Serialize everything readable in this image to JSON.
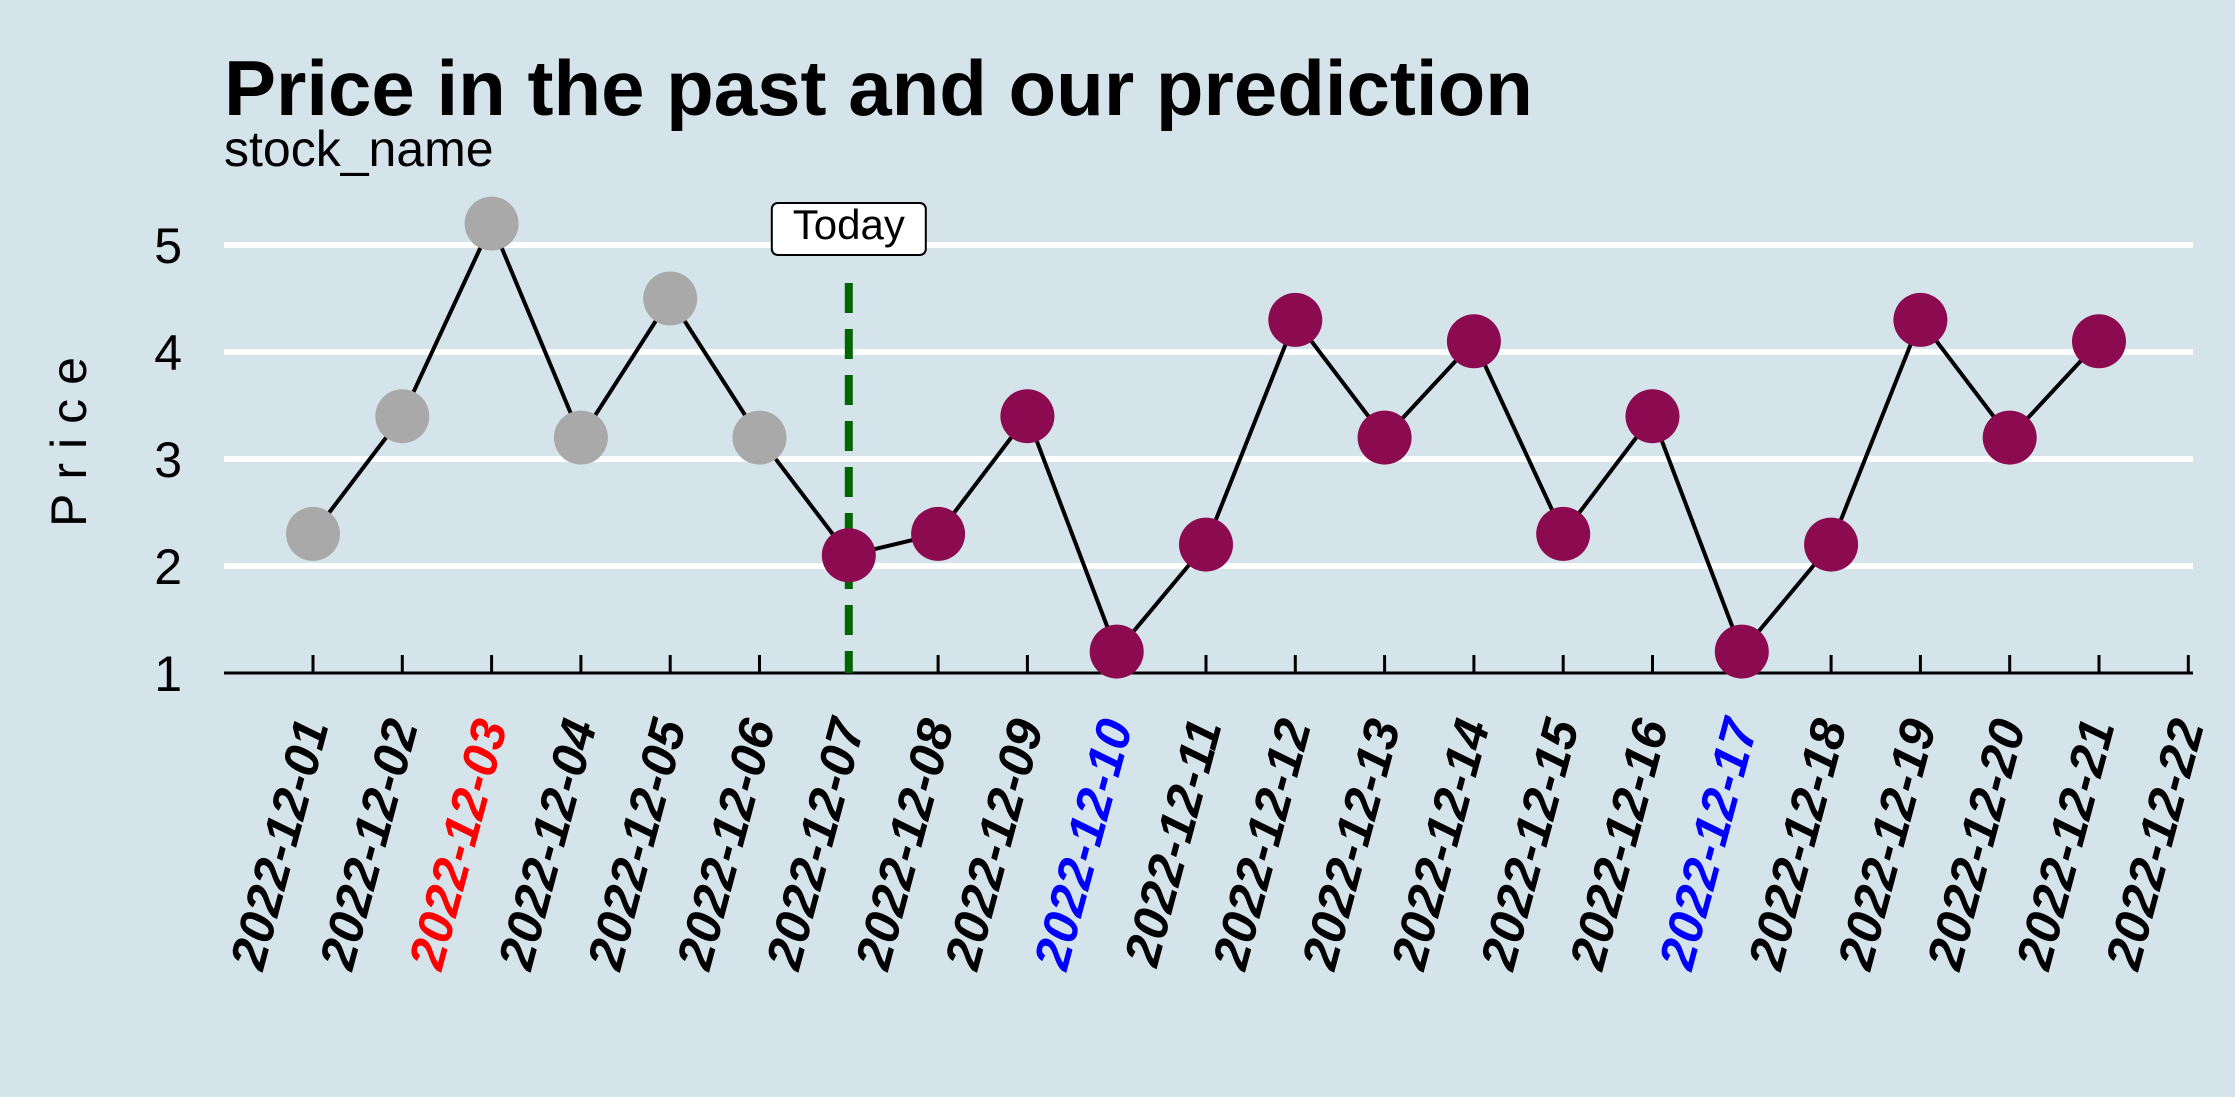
{
  "chart_data": {
    "type": "line",
    "title": "Price in the past and our prediction",
    "subtitle": "stock_name",
    "xlabel": "",
    "ylabel": "Price",
    "yticks": [
      1,
      2,
      3,
      4,
      5
    ],
    "ylim": [
      1,
      5.45
    ],
    "grid": "horizontal",
    "x": [
      "2022-12-01",
      "2022-12-02",
      "2022-12-03",
      "2022-12-04",
      "2022-12-05",
      "2022-12-06",
      "2022-12-07",
      "2022-12-08",
      "2022-12-09",
      "2022-12-10",
      "2022-12-11",
      "2022-12-12",
      "2022-12-13",
      "2022-12-14",
      "2022-12-15",
      "2022-12-16",
      "2022-12-17",
      "2022-12-18",
      "2022-12-19",
      "2022-12-20",
      "2022-12-21",
      "2022-12-22"
    ],
    "tick_colors": {
      "2022-12-03": "#ff0000",
      "2022-12-10": "#0000ff",
      "2022-12-17": "#0000ff"
    },
    "default_tick_color": "#000000",
    "series": [
      {
        "role": "past",
        "color": "#a9a9a9",
        "x": [
          "2022-12-01",
          "2022-12-02",
          "2022-12-03",
          "2022-12-04",
          "2022-12-05",
          "2022-12-06"
        ],
        "values": [
          2.3,
          3.4,
          5.2,
          3.2,
          4.5,
          3.2
        ]
      },
      {
        "role": "prediction",
        "color": "#8b0a50",
        "x": [
          "2022-12-07",
          "2022-12-08",
          "2022-12-09",
          "2022-12-10",
          "2022-12-11",
          "2022-12-12",
          "2022-12-13",
          "2022-12-14",
          "2022-12-15",
          "2022-12-16",
          "2022-12-17",
          "2022-12-18",
          "2022-12-19",
          "2022-12-20",
          "2022-12-21"
        ],
        "values": [
          2.1,
          2.3,
          3.4,
          1.2,
          2.2,
          4.3,
          3.2,
          4.1,
          2.3,
          3.4,
          1.2,
          2.2,
          4.3,
          3.2,
          4.1
        ]
      }
    ],
    "line_color": "#000000",
    "today": {
      "x": "2022-12-07",
      "label": "Today",
      "line_color": "#006400"
    },
    "background": "#d5e4eb",
    "gridline_color": "#ffffff"
  }
}
